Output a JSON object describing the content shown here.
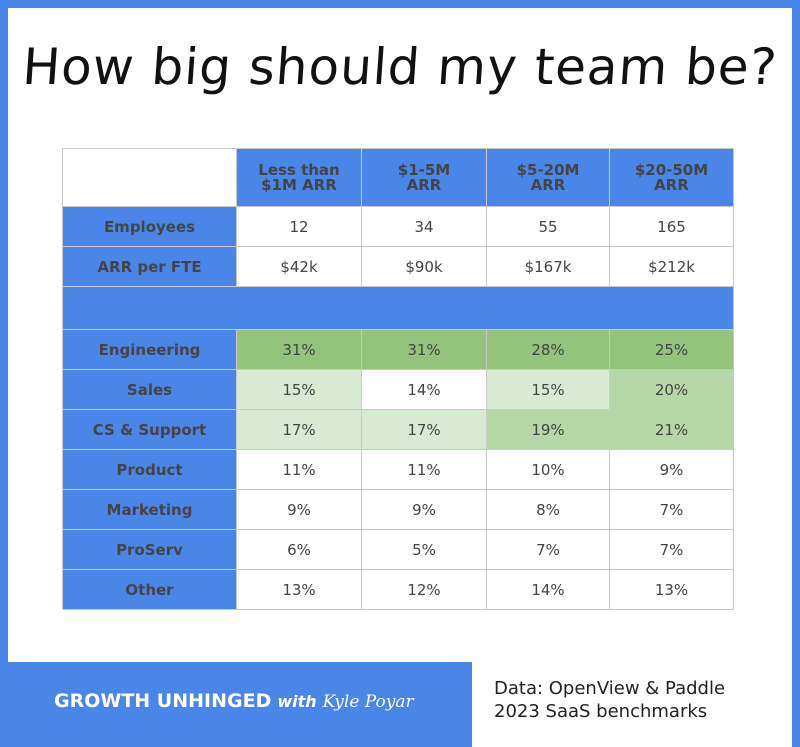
{
  "title": "How big should my team be?",
  "chart_data": {
    "type": "table",
    "columns": [
      "Less than $1M ARR",
      "$1-5M ARR",
      "$5-20M ARR",
      "$20-50M ARR"
    ],
    "column_lines": [
      [
        "Less than",
        "$1M ARR"
      ],
      [
        "$1-5M",
        "ARR"
      ],
      [
        "$5-20M",
        "ARR"
      ],
      [
        "$20-50M",
        "ARR"
      ]
    ],
    "top_rows": [
      {
        "label": "Employees",
        "values": [
          "12",
          "34",
          "55",
          "165"
        ]
      },
      {
        "label": "ARR per FTE",
        "values": [
          "$42k",
          "$90k",
          "$167k",
          "$212k"
        ]
      }
    ],
    "rows": [
      {
        "label": "Engineering",
        "values": [
          "31%",
          "31%",
          "28%",
          "25%"
        ]
      },
      {
        "label": "Sales",
        "values": [
          "15%",
          "14%",
          "15%",
          "20%"
        ]
      },
      {
        "label": "CS & Support",
        "values": [
          "17%",
          "17%",
          "19%",
          "21%"
        ]
      },
      {
        "label": "Product",
        "values": [
          "11%",
          "11%",
          "10%",
          "9%"
        ]
      },
      {
        "label": "Marketing",
        "values": [
          "9%",
          "9%",
          "8%",
          "7%"
        ]
      },
      {
        "label": "ProServ",
        "values": [
          "6%",
          "5%",
          "7%",
          "7%"
        ]
      },
      {
        "label": "Other",
        "values": [
          "13%",
          "12%",
          "14%",
          "13%"
        ]
      }
    ],
    "heat_colors": {
      "high": "#93c47d",
      "mid": "#b6d7a8",
      "low": "#d9ead3",
      "none": "#ffffff"
    }
  },
  "footer": {
    "brand": "GROWTH UNHINGED",
    "brand_with": "with",
    "brand_author": "Kyle Poyar",
    "source_line1": "Data: OpenView & Paddle",
    "source_line2": "2023 SaaS benchmarks"
  },
  "colors": {
    "accent": "#4a86e8"
  }
}
